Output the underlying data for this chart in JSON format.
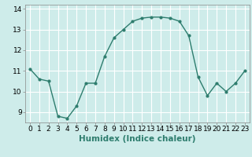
{
  "x": [
    0,
    1,
    2,
    3,
    4,
    5,
    6,
    7,
    8,
    9,
    10,
    11,
    12,
    13,
    14,
    15,
    16,
    17,
    18,
    19,
    20,
    21,
    22,
    23
  ],
  "y": [
    11.1,
    10.6,
    10.5,
    8.8,
    8.7,
    9.3,
    10.4,
    10.4,
    11.7,
    12.6,
    13.0,
    13.4,
    13.55,
    13.6,
    13.6,
    13.55,
    13.4,
    12.7,
    10.7,
    9.8,
    10.4,
    10.0,
    10.4,
    11.0
  ],
  "line_color": "#2e7d6e",
  "marker": "o",
  "markersize": 2,
  "linewidth": 1.0,
  "background_color": "#ceecea",
  "grid_color": "#ffffff",
  "xlabel": "Humidex (Indice chaleur)",
  "xlabel_fontsize": 7.5,
  "xlim": [
    -0.5,
    23.5
  ],
  "ylim": [
    8.5,
    14.2
  ],
  "yticks": [
    9,
    10,
    11,
    12,
    13,
    14
  ],
  "xticks": [
    0,
    1,
    2,
    3,
    4,
    5,
    6,
    7,
    8,
    9,
    10,
    11,
    12,
    13,
    14,
    15,
    16,
    17,
    18,
    19,
    20,
    21,
    22,
    23
  ],
  "tick_fontsize": 6.5
}
